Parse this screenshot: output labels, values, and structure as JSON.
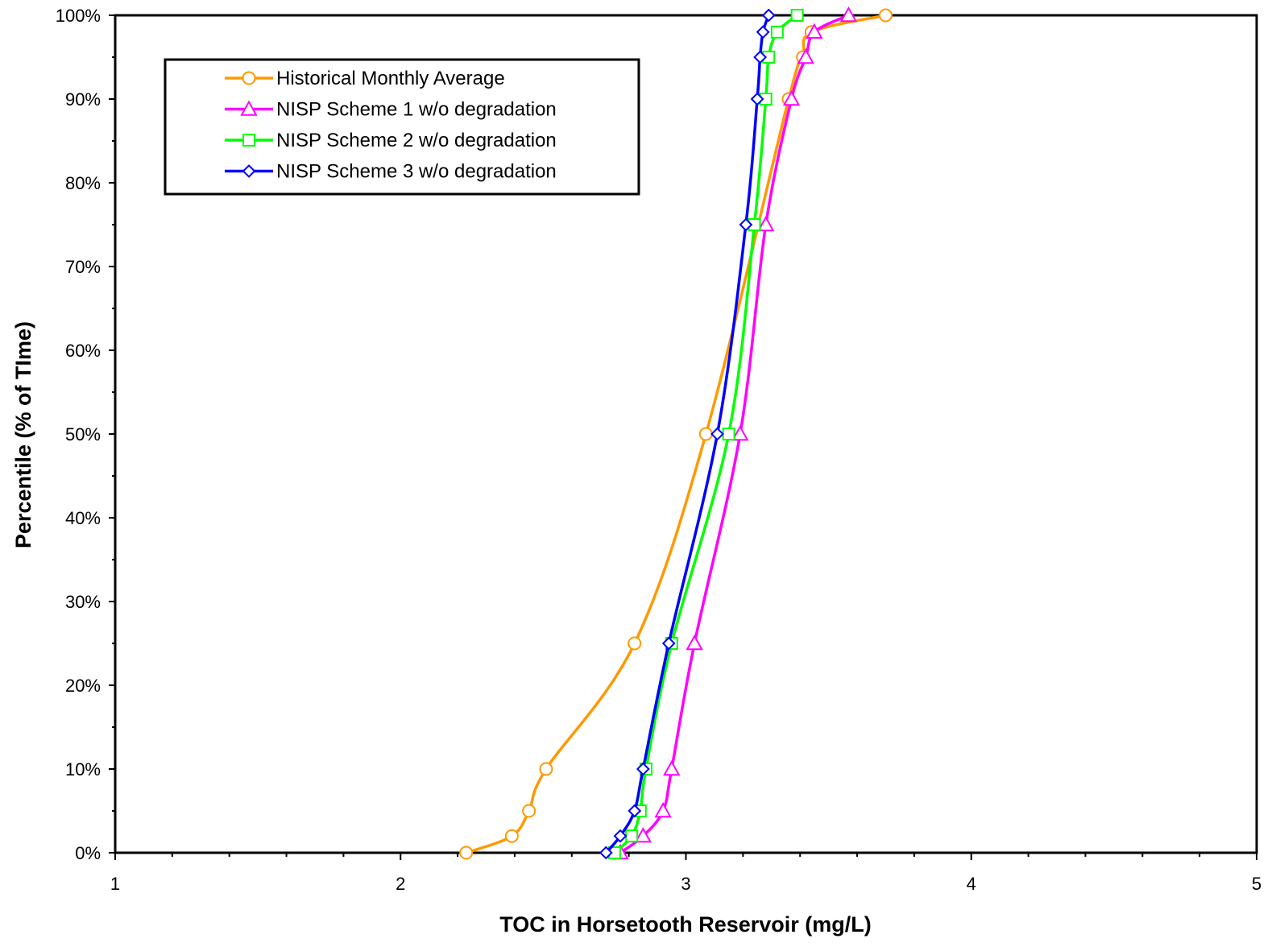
{
  "chart_data": {
    "type": "line",
    "title": "",
    "xlabel": "TOC in Horsetooth Reservoir (mg/L)",
    "ylabel": "Percentile (% of TIme)",
    "xlim": [
      1,
      5
    ],
    "ylim": [
      0,
      100
    ],
    "x_ticks": [
      1,
      2,
      3,
      4,
      5
    ],
    "x_tick_labels": [
      "1",
      "2",
      "3",
      "4",
      "5"
    ],
    "y_ticks": [
      0,
      10,
      20,
      30,
      40,
      50,
      60,
      70,
      80,
      90,
      100
    ],
    "y_tick_labels": [
      "0%",
      "10%",
      "20%",
      "30%",
      "40%",
      "50%",
      "60%",
      "70%",
      "80%",
      "90%",
      "100%"
    ],
    "grid": false,
    "legend_position": "top-left",
    "series": [
      {
        "name": "Historical Monthly Average",
        "color": "#FF9900",
        "marker": "circle",
        "x": [
          2.23,
          2.39,
          2.45,
          2.51,
          2.82,
          3.07,
          3.36,
          3.41,
          3.44,
          3.7
        ],
        "y": [
          0,
          2,
          5,
          10,
          25,
          50,
          90,
          95,
          98,
          100
        ]
      },
      {
        "name": "NISP Scheme 1 w/o degradation",
        "color": "#FF00FF",
        "marker": "triangle",
        "x": [
          2.77,
          2.85,
          2.92,
          2.95,
          3.03,
          3.19,
          3.28,
          3.37,
          3.42,
          3.45,
          3.57
        ],
        "y": [
          0,
          2,
          5,
          10,
          25,
          50,
          75,
          90,
          95,
          98,
          100
        ]
      },
      {
        "name": "NISP Scheme 2 w/o degradation",
        "color": "#00FF00",
        "marker": "square",
        "x": [
          2.75,
          2.81,
          2.84,
          2.86,
          2.95,
          3.15,
          3.24,
          3.28,
          3.29,
          3.32,
          3.39
        ],
        "y": [
          0,
          2,
          5,
          10,
          25,
          50,
          75,
          90,
          95,
          98,
          100
        ]
      },
      {
        "name": "NISP Scheme 3 w/o degradation",
        "color": "#0000FF",
        "marker": "diamond",
        "x": [
          2.72,
          2.77,
          2.82,
          2.85,
          2.94,
          3.11,
          3.21,
          3.25,
          3.26,
          3.27,
          3.29
        ],
        "y": [
          0,
          2,
          5,
          10,
          25,
          50,
          75,
          90,
          95,
          98,
          100
        ]
      }
    ]
  }
}
